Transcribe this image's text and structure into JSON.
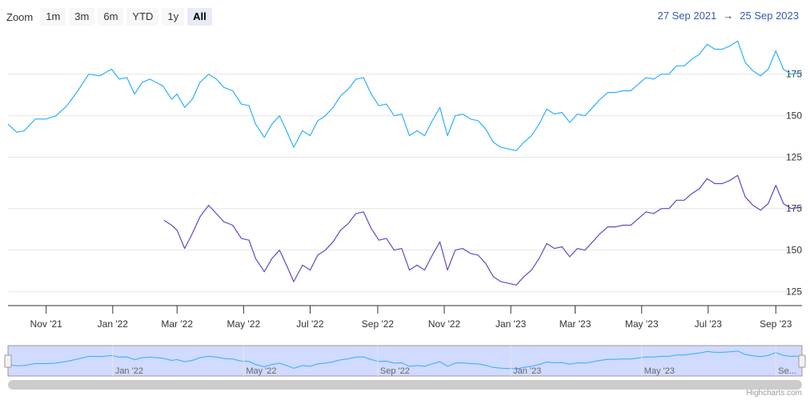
{
  "toolbar": {
    "zoom_label": "Zoom",
    "buttons": [
      "1m",
      "3m",
      "6m",
      "YTD",
      "1y",
      "All"
    ],
    "active": "All"
  },
  "range": {
    "from": "27 Sep 2021",
    "arrow": "→",
    "to": "25 Sep 2023"
  },
  "credits": "Highcharts.com",
  "chart_data": {
    "type": "line",
    "x_range": [
      "2021-09-27",
      "2023-09-25"
    ],
    "x_tick_labels": [
      "Nov '21",
      "Jan '22",
      "Mar '22",
      "May '22",
      "Jul '22",
      "Sep '22",
      "Nov '22",
      "Jan '23",
      "Mar '23",
      "May '23",
      "Jul '23",
      "Sep '23"
    ],
    "x_tick_dates": [
      "2021-11-01",
      "2022-01-01",
      "2022-03-01",
      "2022-05-01",
      "2022-07-01",
      "2022-09-01",
      "2022-11-01",
      "2023-01-01",
      "2023-03-01",
      "2023-05-01",
      "2023-07-01",
      "2023-09-01"
    ],
    "navigator_labels": [
      "Jan '22",
      "May '22",
      "Sep '22",
      "Jan '23",
      "May '23",
      "Se..."
    ],
    "navigator_dates": [
      "2022-01-01",
      "2022-05-01",
      "2022-09-01",
      "2023-01-01",
      "2023-05-01",
      "2023-09-01"
    ],
    "panes": [
      {
        "series_color": "#2caffe",
        "y_ticks": [
          125,
          150,
          175
        ],
        "ylim": [
          120,
          197
        ],
        "points": [
          [
            "2021-09-27",
            145
          ],
          [
            "2021-10-05",
            140
          ],
          [
            "2021-10-12",
            141
          ],
          [
            "2021-10-22",
            148
          ],
          [
            "2021-11-01",
            148
          ],
          [
            "2021-11-10",
            150
          ],
          [
            "2021-11-20",
            156
          ],
          [
            "2021-11-30",
            165
          ],
          [
            "2021-12-10",
            175
          ],
          [
            "2021-12-20",
            174
          ],
          [
            "2021-12-31",
            178
          ],
          [
            "2022-01-07",
            172
          ],
          [
            "2022-01-14",
            173
          ],
          [
            "2022-01-21",
            163
          ],
          [
            "2022-01-28",
            170
          ],
          [
            "2022-02-04",
            172
          ],
          [
            "2022-02-10",
            170
          ],
          [
            "2022-02-16",
            168
          ],
          [
            "2022-02-24",
            160
          ],
          [
            "2022-03-01",
            163
          ],
          [
            "2022-03-08",
            155
          ],
          [
            "2022-03-15",
            160
          ],
          [
            "2022-03-22",
            170
          ],
          [
            "2022-03-30",
            175
          ],
          [
            "2022-04-06",
            172
          ],
          [
            "2022-04-13",
            167
          ],
          [
            "2022-04-21",
            165
          ],
          [
            "2022-04-29",
            157
          ],
          [
            "2022-05-06",
            156
          ],
          [
            "2022-05-12",
            145
          ],
          [
            "2022-05-20",
            137
          ],
          [
            "2022-05-27",
            145
          ],
          [
            "2022-06-03",
            150
          ],
          [
            "2022-06-10",
            140
          ],
          [
            "2022-06-16",
            131
          ],
          [
            "2022-06-24",
            141
          ],
          [
            "2022-07-01",
            138
          ],
          [
            "2022-07-08",
            147
          ],
          [
            "2022-07-15",
            150
          ],
          [
            "2022-07-22",
            155
          ],
          [
            "2022-07-29",
            162
          ],
          [
            "2022-08-05",
            166
          ],
          [
            "2022-08-12",
            172
          ],
          [
            "2022-08-19",
            173
          ],
          [
            "2022-08-26",
            163
          ],
          [
            "2022-09-02",
            156
          ],
          [
            "2022-09-09",
            157
          ],
          [
            "2022-09-16",
            150
          ],
          [
            "2022-09-23",
            151
          ],
          [
            "2022-09-30",
            138
          ],
          [
            "2022-10-07",
            141
          ],
          [
            "2022-10-14",
            138
          ],
          [
            "2022-10-21",
            147
          ],
          [
            "2022-10-28",
            155
          ],
          [
            "2022-11-04",
            138
          ],
          [
            "2022-11-11",
            150
          ],
          [
            "2022-11-18",
            151
          ],
          [
            "2022-11-25",
            148
          ],
          [
            "2022-12-02",
            147
          ],
          [
            "2022-12-09",
            142
          ],
          [
            "2022-12-16",
            134
          ],
          [
            "2022-12-23",
            131
          ],
          [
            "2022-12-30",
            130
          ],
          [
            "2023-01-06",
            129
          ],
          [
            "2023-01-13",
            134
          ],
          [
            "2023-01-20",
            138
          ],
          [
            "2023-01-27",
            145
          ],
          [
            "2023-02-03",
            154
          ],
          [
            "2023-02-10",
            151
          ],
          [
            "2023-02-17",
            152
          ],
          [
            "2023-02-24",
            146
          ],
          [
            "2023-03-03",
            151
          ],
          [
            "2023-03-10",
            150
          ],
          [
            "2023-03-17",
            155
          ],
          [
            "2023-03-24",
            160
          ],
          [
            "2023-03-31",
            164
          ],
          [
            "2023-04-07",
            164
          ],
          [
            "2023-04-14",
            165
          ],
          [
            "2023-04-21",
            165
          ],
          [
            "2023-04-28",
            169
          ],
          [
            "2023-05-05",
            173
          ],
          [
            "2023-05-12",
            172
          ],
          [
            "2023-05-19",
            175
          ],
          [
            "2023-05-26",
            175
          ],
          [
            "2023-06-02",
            180
          ],
          [
            "2023-06-09",
            180
          ],
          [
            "2023-06-16",
            184
          ],
          [
            "2023-06-23",
            187
          ],
          [
            "2023-06-30",
            193
          ],
          [
            "2023-07-07",
            190
          ],
          [
            "2023-07-14",
            190
          ],
          [
            "2023-07-21",
            192
          ],
          [
            "2023-07-28",
            195
          ],
          [
            "2023-08-04",
            182
          ],
          [
            "2023-08-11",
            177
          ],
          [
            "2023-08-18",
            174
          ],
          [
            "2023-08-25",
            178
          ],
          [
            "2023-09-01",
            189
          ],
          [
            "2023-09-08",
            178
          ],
          [
            "2023-09-15",
            175
          ],
          [
            "2023-09-25",
            176
          ]
        ]
      },
      {
        "series_color": "#544fc5",
        "y_ticks": [
          125,
          150,
          175
        ],
        "ylim": [
          120,
          197
        ],
        "points": [
          [
            "2022-02-17",
            168
          ],
          [
            "2022-02-24",
            165
          ],
          [
            "2022-03-01",
            162
          ],
          [
            "2022-03-08",
            151
          ],
          [
            "2022-03-15",
            160
          ],
          [
            "2022-03-22",
            170
          ],
          [
            "2022-03-30",
            177
          ],
          [
            "2022-04-06",
            172
          ],
          [
            "2022-04-13",
            167
          ],
          [
            "2022-04-21",
            165
          ],
          [
            "2022-04-29",
            157
          ],
          [
            "2022-05-06",
            156
          ],
          [
            "2022-05-12",
            145
          ],
          [
            "2022-05-20",
            137
          ],
          [
            "2022-05-27",
            145
          ],
          [
            "2022-06-03",
            150
          ],
          [
            "2022-06-10",
            140
          ],
          [
            "2022-06-16",
            131
          ],
          [
            "2022-06-24",
            141
          ],
          [
            "2022-07-01",
            138
          ],
          [
            "2022-07-08",
            147
          ],
          [
            "2022-07-15",
            150
          ],
          [
            "2022-07-22",
            155
          ],
          [
            "2022-07-29",
            162
          ],
          [
            "2022-08-05",
            166
          ],
          [
            "2022-08-12",
            172
          ],
          [
            "2022-08-19",
            173
          ],
          [
            "2022-08-26",
            163
          ],
          [
            "2022-09-02",
            156
          ],
          [
            "2022-09-09",
            157
          ],
          [
            "2022-09-16",
            150
          ],
          [
            "2022-09-23",
            151
          ],
          [
            "2022-09-30",
            138
          ],
          [
            "2022-10-07",
            141
          ],
          [
            "2022-10-14",
            138
          ],
          [
            "2022-10-21",
            147
          ],
          [
            "2022-10-28",
            155
          ],
          [
            "2022-11-04",
            138
          ],
          [
            "2022-11-11",
            150
          ],
          [
            "2022-11-18",
            151
          ],
          [
            "2022-11-25",
            148
          ],
          [
            "2022-12-02",
            147
          ],
          [
            "2022-12-09",
            142
          ],
          [
            "2022-12-16",
            134
          ],
          [
            "2022-12-23",
            131
          ],
          [
            "2022-12-30",
            130
          ],
          [
            "2023-01-06",
            129
          ],
          [
            "2023-01-13",
            134
          ],
          [
            "2023-01-20",
            138
          ],
          [
            "2023-01-27",
            145
          ],
          [
            "2023-02-03",
            154
          ],
          [
            "2023-02-10",
            151
          ],
          [
            "2023-02-17",
            152
          ],
          [
            "2023-02-24",
            146
          ],
          [
            "2023-03-03",
            151
          ],
          [
            "2023-03-10",
            150
          ],
          [
            "2023-03-17",
            155
          ],
          [
            "2023-03-24",
            160
          ],
          [
            "2023-03-31",
            164
          ],
          [
            "2023-04-07",
            164
          ],
          [
            "2023-04-14",
            165
          ],
          [
            "2023-04-21",
            165
          ],
          [
            "2023-04-28",
            169
          ],
          [
            "2023-05-05",
            173
          ],
          [
            "2023-05-12",
            172
          ],
          [
            "2023-05-19",
            175
          ],
          [
            "2023-05-26",
            175
          ],
          [
            "2023-06-02",
            180
          ],
          [
            "2023-06-09",
            180
          ],
          [
            "2023-06-16",
            184
          ],
          [
            "2023-06-23",
            187
          ],
          [
            "2023-06-30",
            193
          ],
          [
            "2023-07-07",
            190
          ],
          [
            "2023-07-14",
            190
          ],
          [
            "2023-07-21",
            192
          ],
          [
            "2023-07-28",
            195
          ],
          [
            "2023-08-04",
            182
          ],
          [
            "2023-08-11",
            177
          ],
          [
            "2023-08-18",
            174
          ],
          [
            "2023-08-25",
            178
          ],
          [
            "2023-09-01",
            189
          ],
          [
            "2023-09-08",
            178
          ],
          [
            "2023-09-15",
            175
          ],
          [
            "2023-09-25",
            176
          ]
        ]
      }
    ],
    "grid": true,
    "navigator": true
  }
}
